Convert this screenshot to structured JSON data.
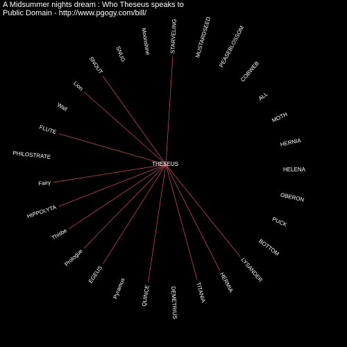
{
  "header": {
    "title": "A Midsummer nights dream : Who Theseus speaks to",
    "subtitle": "Public Domain - http://www.pgogy.com/bill/"
  },
  "center": {
    "label": "THESEUS"
  },
  "nodes": [
    {
      "label": "HELENA",
      "speaks_to": false
    },
    {
      "label": "OBERON",
      "speaks_to": false
    },
    {
      "label": "PUCK",
      "speaks_to": false
    },
    {
      "label": "BOTTOM",
      "speaks_to": false
    },
    {
      "label": "LYSANDER",
      "speaks_to": true
    },
    {
      "label": "HERMIA",
      "speaks_to": true
    },
    {
      "label": "TITANIA",
      "speaks_to": true
    },
    {
      "label": "DEMETRIUS",
      "speaks_to": false
    },
    {
      "label": "QUINCE",
      "speaks_to": true
    },
    {
      "label": "Pyramus",
      "speaks_to": false
    },
    {
      "label": "EGEUS",
      "speaks_to": true
    },
    {
      "label": "Prologue",
      "speaks_to": true
    },
    {
      "label": "Thisbe",
      "speaks_to": true
    },
    {
      "label": "HIPPOLYTA",
      "speaks_to": true
    },
    {
      "label": "Fairy",
      "speaks_to": true
    },
    {
      "label": "PHILOSTRATE",
      "speaks_to": false
    },
    {
      "label": "FLUTE",
      "speaks_to": true
    },
    {
      "label": "Wall",
      "speaks_to": false
    },
    {
      "label": "Lion",
      "speaks_to": true
    },
    {
      "label": "SNOUT",
      "speaks_to": true
    },
    {
      "label": "SNUG",
      "speaks_to": false
    },
    {
      "label": "Moonshine",
      "speaks_to": false
    },
    {
      "label": "STARVELING",
      "speaks_to": true
    },
    {
      "label": "MUSTARDSEED",
      "speaks_to": false
    },
    {
      "label": "PEASEBLOSSOM",
      "speaks_to": false
    },
    {
      "label": "COBWEB",
      "speaks_to": false
    },
    {
      "label": "ALL",
      "speaks_to": false
    },
    {
      "label": "MOTH",
      "speaks_to": false
    },
    {
      "label": "HERNIA",
      "speaks_to": false
    }
  ]
}
